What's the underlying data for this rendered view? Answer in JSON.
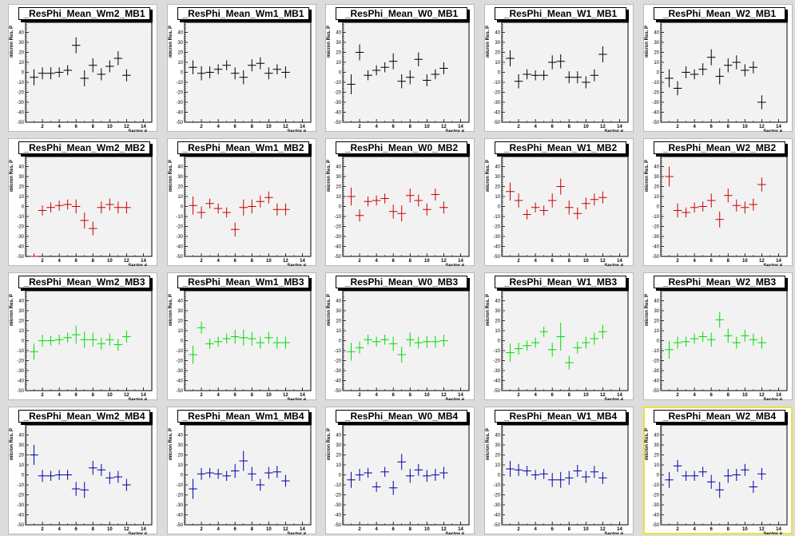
{
  "canvas": {
    "background": "#dcdcdc",
    "plot_background": "#f2f2f2",
    "selected_border": "#e7e33a"
  },
  "axis": {
    "xlabel": "Sector #",
    "ylabel": "micron Res. P",
    "xticks": [
      "2",
      "4",
      "6",
      "8",
      "10",
      "12",
      "14"
    ],
    "yticks": [
      "40",
      "30",
      "20",
      "10",
      "0",
      "-10",
      "-20",
      "-30",
      "-40",
      "-50"
    ]
  },
  "colors": {
    "MB1": "#000000",
    "MB2": "#cc0000",
    "MB3": "#00dd00",
    "MB4": "#0000aa"
  },
  "chart_data": [
    {
      "type": "scatter",
      "title": "_ResPhi_Mean_Wm2_MB1",
      "xlabel": "Sector #",
      "ylabel": "micron Res. P",
      "xlim": [
        0,
        15
      ],
      "ylim": [
        -50,
        50
      ],
      "x": [
        1,
        2,
        3,
        4,
        5,
        6,
        7,
        8,
        9,
        10,
        11,
        12
      ],
      "y": [
        -5,
        -1,
        -1,
        0,
        2,
        27,
        -6,
        7,
        -2,
        6,
        14,
        -3
      ],
      "yerr": [
        8,
        6,
        6,
        5,
        5,
        8,
        8,
        7,
        6,
        6,
        7,
        6
      ],
      "color": "#000000"
    },
    {
      "type": "scatter",
      "title": "_ResPhi_Mean_Wm1_MB1",
      "xlabel": "Sector #",
      "ylabel": "micron Res. P",
      "xlim": [
        0,
        15
      ],
      "ylim": [
        -50,
        50
      ],
      "x": [
        1,
        2,
        3,
        4,
        5,
        6,
        7,
        8,
        9,
        10,
        11,
        12
      ],
      "y": [
        5,
        -1,
        0,
        3,
        7,
        -1,
        -5,
        7,
        9,
        -1,
        3,
        0
      ],
      "yerr": [
        7,
        7,
        6,
        5,
        5,
        6,
        7,
        6,
        6,
        6,
        5,
        6
      ],
      "color": "#000000"
    },
    {
      "type": "scatter",
      "title": "_ResPhi_Mean_W0_MB1",
      "xlabel": "Sector #",
      "ylabel": "micron Res. P",
      "xlim": [
        0,
        15
      ],
      "ylim": [
        -50,
        50
      ],
      "x": [
        1,
        2,
        3,
        4,
        5,
        6,
        7,
        8,
        9,
        10,
        11,
        12
      ],
      "y": [
        -12,
        20,
        -3,
        2,
        5,
        11,
        -9,
        -5,
        13,
        -8,
        -2,
        4
      ],
      "yerr": [
        10,
        8,
        5,
        5,
        5,
        8,
        7,
        7,
        7,
        6,
        5,
        6
      ],
      "color": "#000000"
    },
    {
      "type": "scatter",
      "title": "_ResPhi_Mean_W1_MB1",
      "xlabel": "Sector #",
      "ylabel": "micron Res. P",
      "xlim": [
        0,
        15
      ],
      "ylim": [
        -50,
        50
      ],
      "x": [
        1,
        2,
        3,
        4,
        5,
        6,
        7,
        8,
        9,
        10,
        11,
        12
      ],
      "y": [
        14,
        -9,
        -2,
        -3,
        -3,
        10,
        11,
        -5,
        -5,
        -10,
        -3,
        18
      ],
      "yerr": [
        8,
        7,
        5,
        5,
        5,
        7,
        7,
        6,
        6,
        6,
        6,
        8
      ],
      "color": "#000000"
    },
    {
      "type": "scatter",
      "title": "_ResPhi_Mean_W2_MB1",
      "xlabel": "Sector #",
      "ylabel": "micron Res. P",
      "xlim": [
        0,
        15
      ],
      "ylim": [
        -50,
        50
      ],
      "x": [
        1,
        2,
        3,
        4,
        5,
        6,
        7,
        8,
        9,
        10,
        11,
        12
      ],
      "y": [
        -6,
        -16,
        0,
        -2,
        3,
        15,
        -4,
        7,
        10,
        2,
        5,
        -30
      ],
      "yerr": [
        9,
        7,
        6,
        5,
        6,
        8,
        8,
        7,
        7,
        6,
        6,
        7
      ],
      "color": "#000000"
    },
    {
      "type": "scatter",
      "title": "_ResPhi_Mean_Wm2_MB2",
      "xlabel": "Sector #",
      "ylabel": "micron Res. P",
      "xlim": [
        0,
        15
      ],
      "ylim": [
        -50,
        50
      ],
      "x": [
        1,
        2,
        3,
        4,
        5,
        6,
        7,
        8,
        9,
        10,
        11,
        12
      ],
      "y": [
        -50,
        -4,
        -1,
        1,
        2,
        0,
        -14,
        -22,
        -1,
        2,
        -1,
        -1
      ],
      "yerr": [
        3,
        5,
        5,
        5,
        5,
        7,
        8,
        7,
        6,
        6,
        6,
        6
      ],
      "color": "#cc0000"
    },
    {
      "type": "scatter",
      "title": "_ResPhi_Mean_Wm1_MB2",
      "xlabel": "Sector #",
      "ylabel": "micron Res. P",
      "xlim": [
        0,
        15
      ],
      "ylim": [
        -50,
        50
      ],
      "x": [
        1,
        2,
        3,
        4,
        5,
        6,
        7,
        8,
        9,
        10,
        11,
        12
      ],
      "y": [
        1,
        -6,
        3,
        -2,
        -6,
        -23,
        -1,
        0,
        5,
        9,
        -3,
        -3
      ],
      "yerr": [
        9,
        6,
        5,
        5,
        5,
        7,
        8,
        7,
        6,
        6,
        6,
        6
      ],
      "color": "#cc0000"
    },
    {
      "type": "scatter",
      "title": "_ResPhi_Mean_W0_MB2",
      "xlabel": "Sector #",
      "ylabel": "micron Res. P",
      "xlim": [
        0,
        15
      ],
      "ylim": [
        -50,
        50
      ],
      "x": [
        1,
        2,
        3,
        4,
        5,
        6,
        7,
        8,
        9,
        10,
        11,
        12
      ],
      "y": [
        10,
        -9,
        5,
        6,
        8,
        -5,
        -7,
        11,
        6,
        -3,
        12,
        -1
      ],
      "yerr": [
        9,
        6,
        5,
        5,
        5,
        7,
        8,
        7,
        6,
        6,
        6,
        6
      ],
      "color": "#cc0000"
    },
    {
      "type": "scatter",
      "title": "_ResPhi_Mean_W1_MB2",
      "xlabel": "Sector #",
      "ylabel": "micron Res. P",
      "xlim": [
        0,
        15
      ],
      "ylim": [
        -50,
        50
      ],
      "x": [
        1,
        2,
        3,
        4,
        5,
        6,
        7,
        8,
        9,
        10,
        11,
        12
      ],
      "y": [
        15,
        6,
        -8,
        -1,
        -4,
        6,
        20,
        -1,
        -7,
        3,
        7,
        9
      ],
      "yerr": [
        9,
        7,
        5,
        5,
        5,
        7,
        8,
        7,
        6,
        6,
        6,
        6
      ],
      "color": "#cc0000"
    },
    {
      "type": "scatter",
      "title": "_ResPhi_Mean_W2_MB2",
      "xlabel": "Sector #",
      "ylabel": "micron Res. P",
      "xlim": [
        0,
        15
      ],
      "ylim": [
        -50,
        50
      ],
      "x": [
        1,
        2,
        3,
        4,
        5,
        6,
        7,
        8,
        9,
        10,
        11,
        12
      ],
      "y": [
        30,
        -4,
        -6,
        -1,
        0,
        6,
        -13,
        11,
        1,
        -1,
        2,
        22
      ],
      "yerr": [
        10,
        7,
        5,
        5,
        5,
        7,
        8,
        7,
        6,
        6,
        6,
        7
      ],
      "color": "#cc0000"
    },
    {
      "type": "scatter",
      "title": "_ResPhi_Mean_Wm2_MB3",
      "xlabel": "Sector #",
      "ylabel": "micron Res. P",
      "xlim": [
        0,
        15
      ],
      "ylim": [
        -50,
        50
      ],
      "x": [
        1,
        2,
        3,
        4,
        5,
        6,
        7,
        8,
        9,
        10,
        11,
        12
      ],
      "y": [
        -11,
        0,
        0,
        1,
        3,
        6,
        1,
        1,
        -3,
        1,
        -4,
        4
      ],
      "yerr": [
        8,
        6,
        5,
        5,
        5,
        9,
        8,
        7,
        6,
        6,
        6,
        6
      ],
      "color": "#00dd00"
    },
    {
      "type": "scatter",
      "title": "_ResPhi_Mean_Wm1_MB3",
      "xlabel": "Sector #",
      "ylabel": "micron Res. P",
      "xlim": [
        0,
        15
      ],
      "ylim": [
        -50,
        50
      ],
      "x": [
        1,
        2,
        3,
        4,
        5,
        6,
        7,
        8,
        9,
        10,
        11,
        12
      ],
      "y": [
        -14,
        13,
        -3,
        -1,
        2,
        4,
        3,
        2,
        -2,
        3,
        -2,
        -2
      ],
      "yerr": [
        9,
        6,
        5,
        5,
        5,
        7,
        8,
        7,
        6,
        6,
        6,
        6
      ],
      "color": "#00dd00"
    },
    {
      "type": "scatter",
      "title": "_ResPhi_Mean_W0_MB3",
      "xlabel": "Sector #",
      "ylabel": "micron Res. P",
      "xlim": [
        0,
        15
      ],
      "ylim": [
        -50,
        50
      ],
      "x": [
        1,
        2,
        3,
        4,
        5,
        6,
        7,
        8,
        9,
        10,
        11,
        12
      ],
      "y": [
        -11,
        -7,
        1,
        -1,
        1,
        -3,
        -14,
        1,
        -2,
        -1,
        -1,
        0
      ],
      "yerr": [
        9,
        6,
        5,
        5,
        5,
        7,
        8,
        7,
        6,
        6,
        6,
        6
      ],
      "color": "#00dd00"
    },
    {
      "type": "scatter",
      "title": "_ResPhi_Mean_W1_MB3",
      "xlabel": "Sector #",
      "ylabel": "micron Res. P",
      "xlim": [
        0,
        15
      ],
      "ylim": [
        -50,
        50
      ],
      "x": [
        1,
        2,
        3,
        4,
        5,
        6,
        7,
        8,
        9,
        10,
        11,
        12
      ],
      "y": [
        -12,
        -8,
        -5,
        -2,
        9,
        -9,
        4,
        -22,
        -7,
        -2,
        2,
        9
      ],
      "yerr": [
        9,
        6,
        5,
        5,
        5,
        7,
        14,
        7,
        6,
        6,
        6,
        7
      ],
      "color": "#00dd00"
    },
    {
      "type": "scatter",
      "title": "_ResPhi_Mean_W2_MB3",
      "xlabel": "Sector #",
      "ylabel": "micron Res. P",
      "xlim": [
        0,
        15
      ],
      "ylim": [
        -50,
        50
      ],
      "x": [
        1,
        2,
        3,
        4,
        5,
        6,
        7,
        8,
        9,
        10,
        11,
        12
      ],
      "y": [
        -9,
        -2,
        -1,
        2,
        4,
        1,
        21,
        5,
        -2,
        5,
        1,
        -2
      ],
      "yerr": [
        9,
        6,
        5,
        5,
        5,
        7,
        8,
        7,
        6,
        6,
        6,
        6
      ],
      "color": "#00dd00"
    },
    {
      "type": "scatter",
      "title": "_ResPhi_Mean_Wm2_MB4",
      "xlabel": "Sector #",
      "ylabel": "micron Res. P",
      "xlim": [
        0,
        15
      ],
      "ylim": [
        -50,
        50
      ],
      "x": [
        1,
        2,
        3,
        4,
        5,
        6,
        7,
        8,
        9,
        10,
        11,
        12
      ],
      "y": [
        20,
        -1,
        -1,
        0,
        0,
        -14,
        -15,
        7,
        5,
        -3,
        -2,
        -10
      ],
      "yerr": [
        10,
        6,
        5,
        5,
        5,
        7,
        8,
        7,
        6,
        6,
        6,
        6
      ],
      "color": "#0000aa"
    },
    {
      "type": "scatter",
      "title": "_ResPhi_Mean_Wm1_MB4",
      "xlabel": "Sector #",
      "ylabel": "micron Res. P",
      "xlim": [
        0,
        15
      ],
      "ylim": [
        -50,
        50
      ],
      "x": [
        1,
        2,
        3,
        4,
        5,
        6,
        7,
        8,
        9,
        10,
        11,
        12
      ],
      "y": [
        -14,
        1,
        2,
        1,
        -1,
        4,
        14,
        1,
        -10,
        2,
        3,
        -6
      ],
      "yerr": [
        10,
        6,
        5,
        5,
        5,
        7,
        10,
        7,
        6,
        6,
        6,
        6
      ],
      "color": "#0000aa"
    },
    {
      "type": "scatter",
      "title": "_ResPhi_Mean_W0_MB4",
      "xlabel": "Sector #",
      "ylabel": "micron Res. P",
      "xlim": [
        0,
        15
      ],
      "ylim": [
        -50,
        50
      ],
      "x": [
        1,
        2,
        3,
        4,
        5,
        6,
        7,
        8,
        9,
        10,
        11,
        12
      ],
      "y": [
        -5,
        0,
        2,
        -12,
        3,
        -13,
        13,
        -1,
        5,
        -1,
        0,
        2
      ],
      "yerr": [
        8,
        6,
        5,
        5,
        5,
        7,
        8,
        7,
        6,
        6,
        6,
        6
      ],
      "color": "#0000aa"
    },
    {
      "type": "scatter",
      "title": "_ResPhi_Mean_W1_MB4",
      "xlabel": "Sector #",
      "ylabel": "micron Res. P",
      "xlim": [
        0,
        15
      ],
      "ylim": [
        -50,
        50
      ],
      "x": [
        1,
        2,
        3,
        4,
        5,
        6,
        7,
        8,
        9,
        10,
        11,
        12
      ],
      "y": [
        6,
        5,
        4,
        0,
        1,
        -5,
        -5,
        -3,
        4,
        -2,
        3,
        -3
      ],
      "yerr": [
        8,
        6,
        5,
        5,
        5,
        7,
        8,
        7,
        6,
        6,
        6,
        6
      ],
      "color": "#0000aa"
    },
    {
      "type": "scatter",
      "title": "_ResPhi_Mean_W2_MB4",
      "xlabel": "Sector #",
      "ylabel": "micron Res. P",
      "xlim": [
        0,
        15
      ],
      "ylim": [
        -50,
        50
      ],
      "x": [
        1,
        2,
        3,
        4,
        5,
        6,
        7,
        8,
        9,
        10,
        11,
        12
      ],
      "y": [
        -5,
        9,
        -1,
        -1,
        3,
        -7,
        -15,
        -1,
        0,
        5,
        -12,
        1
      ],
      "yerr": [
        8,
        6,
        5,
        5,
        5,
        7,
        8,
        7,
        6,
        6,
        6,
        6
      ],
      "color": "#0000aa"
    }
  ]
}
